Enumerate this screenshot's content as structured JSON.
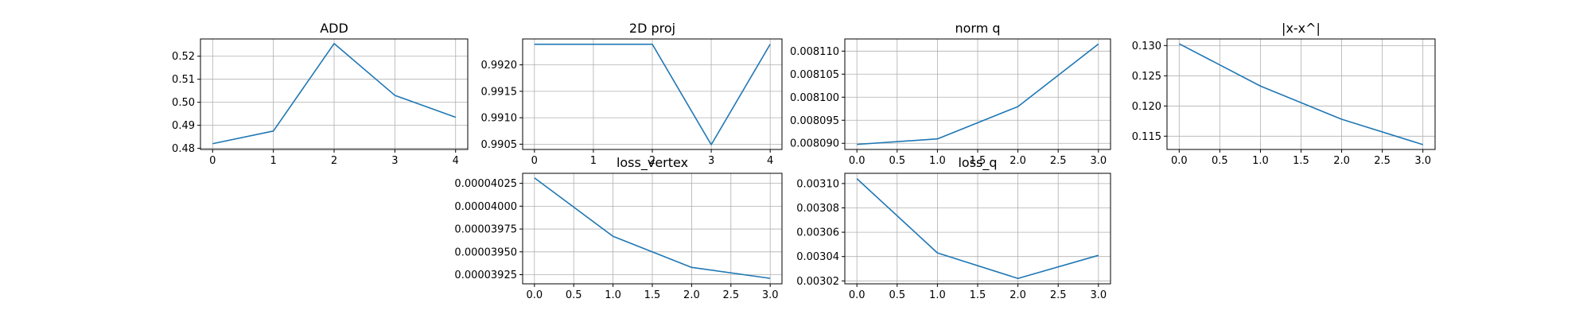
{
  "figure": {
    "background": "#ffffff",
    "line_color": "#1f77b4",
    "grid_color": "#b0b0b0",
    "axis_color": "#000000"
  },
  "chart_data": [
    {
      "type": "line",
      "title": "ADD",
      "x": [
        0,
        1,
        2,
        3,
        4
      ],
      "y": [
        0.482,
        0.4875,
        0.5255,
        0.503,
        0.4935
      ],
      "xlim": [
        -0.2,
        4.2
      ],
      "ylim": [
        0.4795,
        0.5275
      ],
      "xticks": [
        0,
        1,
        2,
        3,
        4
      ],
      "xtick_labels": [
        "0",
        "1",
        "2",
        "3",
        "4"
      ],
      "yticks": [
        0.48,
        0.49,
        0.5,
        0.51,
        0.52
      ],
      "ytick_labels": [
        "0.48",
        "0.49",
        "0.50",
        "0.51",
        "0.52"
      ],
      "xlabel": "",
      "ylabel": "",
      "grid": true
    },
    {
      "type": "line",
      "title": "2D proj",
      "x": [
        0,
        1,
        2,
        3,
        4
      ],
      "y": [
        0.99239,
        0.99239,
        0.99239,
        0.99049,
        0.99239
      ],
      "xlim": [
        -0.2,
        4.2
      ],
      "ylim": [
        0.9904,
        0.99249
      ],
      "xticks": [
        0,
        1,
        2,
        3,
        4
      ],
      "xtick_labels": [
        "0",
        "1",
        "2",
        "3",
        "4"
      ],
      "yticks": [
        0.9905,
        0.991,
        0.9915,
        0.992
      ],
      "ytick_labels": [
        "0.9905",
        "0.9910",
        "0.9915",
        "0.9920"
      ],
      "xlabel": "",
      "ylabel": "",
      "grid": true
    },
    {
      "type": "line",
      "title": "norm q",
      "x": [
        0,
        1,
        2,
        3
      ],
      "y": [
        0.00808976,
        0.00809095,
        0.00809796,
        0.00811155
      ],
      "xlim": [
        -0.15,
        3.15
      ],
      "ylim": [
        0.00808866,
        0.00811264
      ],
      "xticks": [
        0,
        0.5,
        1,
        1.5,
        2,
        2.5,
        3
      ],
      "xtick_labels": [
        "0.0",
        "0.5",
        "1.0",
        "1.5",
        "2.0",
        "2.5",
        "3.0"
      ],
      "yticks": [
        0.00809,
        0.008095,
        0.0081,
        0.008105,
        0.00811
      ],
      "ytick_labels": [
        "0.008090",
        "0.008095",
        "0.008100",
        "0.008105",
        "0.008110"
      ],
      "xlabel": "",
      "ylabel": "",
      "grid": true
    },
    {
      "type": "line",
      "title": "|x-x^|",
      "x": [
        0,
        1,
        2,
        3
      ],
      "y": [
        0.1303,
        0.1233,
        0.1178,
        0.1136
      ],
      "xlim": [
        -0.15,
        3.15
      ],
      "ylim": [
        0.1128,
        0.1311
      ],
      "xticks": [
        0,
        0.5,
        1,
        1.5,
        2,
        2.5,
        3
      ],
      "xtick_labels": [
        "0.0",
        "0.5",
        "1.0",
        "1.5",
        "2.0",
        "2.5",
        "3.0"
      ],
      "yticks": [
        0.115,
        0.12,
        0.125,
        0.13
      ],
      "ytick_labels": [
        "0.115",
        "0.120",
        "0.125",
        "0.130"
      ],
      "xlabel": "",
      "ylabel": "",
      "grid": true
    },
    {
      "type": "line",
      "title": "loss_vertex",
      "x": [
        0,
        1,
        2,
        3
      ],
      "y": [
        4.031e-05,
        3.967e-05,
        3.933e-05,
        3.921e-05
      ],
      "xlim": [
        -0.15,
        3.15
      ],
      "ylim": [
        3.915e-05,
        4.036e-05
      ],
      "xticks": [
        0,
        0.5,
        1,
        1.5,
        2,
        2.5,
        3
      ],
      "xtick_labels": [
        "0.0",
        "0.5",
        "1.0",
        "1.5",
        "2.0",
        "2.5",
        "3.0"
      ],
      "yticks": [
        3.925e-05,
        3.95e-05,
        3.975e-05,
        4e-05,
        4.025e-05
      ],
      "ytick_labels": [
        "0.00003925",
        "0.00003950",
        "0.00003975",
        "0.00004000",
        "0.00004025"
      ],
      "xlabel": "",
      "ylabel": "",
      "grid": true
    },
    {
      "type": "line",
      "title": "loss_q",
      "x": [
        0,
        1,
        2,
        3
      ],
      "y": [
        0.003104,
        0.003043,
        0.003022,
        0.003041
      ],
      "xlim": [
        -0.15,
        3.15
      ],
      "ylim": [
        0.0030176,
        0.0031084
      ],
      "xticks": [
        0,
        0.5,
        1,
        1.5,
        2,
        2.5,
        3
      ],
      "xtick_labels": [
        "0.0",
        "0.5",
        "1.0",
        "1.5",
        "2.0",
        "2.5",
        "3.0"
      ],
      "yticks": [
        0.00302,
        0.00304,
        0.00306,
        0.00308,
        0.0031
      ],
      "ytick_labels": [
        "0.00302",
        "0.00304",
        "0.00306",
        "0.00308",
        "0.00310"
      ],
      "xlabel": "",
      "ylabel": "",
      "grid": true
    }
  ]
}
